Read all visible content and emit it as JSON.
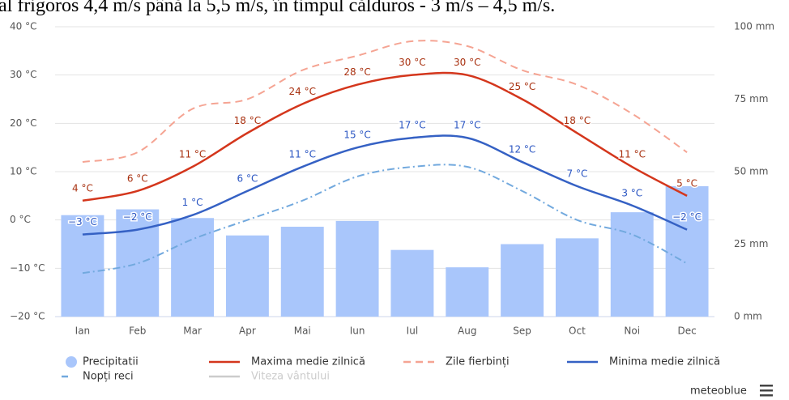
{
  "header_text": "al frigoros 4,4 m/s până la 5,5 m/s, în timpul călduros - 3 m/s – 4,5 m/s.",
  "chart_data": {
    "type": "combo",
    "categories": [
      "Ian",
      "Feb",
      "Mar",
      "Apr",
      "Mai",
      "Iun",
      "Iul",
      "Aug",
      "Sep",
      "Oct",
      "Noi",
      "Dec"
    ],
    "ylim": [
      -20,
      40
    ],
    "yticks": [
      {
        "value": 40,
        "label": "40 °C"
      },
      {
        "value": 30,
        "label": "30 °C"
      },
      {
        "value": 20,
        "label": "20 °C"
      },
      {
        "value": 10,
        "label": "10 °C"
      },
      {
        "value": 0,
        "label": "0 °C"
      },
      {
        "value": -10,
        "label": "−10 °C"
      },
      {
        "value": -20,
        "label": "−20 °C"
      }
    ],
    "y2lim": [
      0,
      100
    ],
    "y2ticks": [
      {
        "value": 100,
        "label": "100 mm"
      },
      {
        "value": 75,
        "label": "75 mm"
      },
      {
        "value": 50,
        "label": "50 mm"
      },
      {
        "value": 25,
        "label": "25 mm"
      },
      {
        "value": 0,
        "label": "0 mm"
      }
    ],
    "grid": true,
    "series": [
      {
        "name": "Precipitatii",
        "type": "bar",
        "axis": "y2",
        "color": "#a9c6fb",
        "values": [
          35,
          37,
          34,
          28,
          31,
          33,
          23,
          17,
          25,
          27,
          36,
          45
        ]
      },
      {
        "name": "Maxima medie zilnică",
        "type": "line",
        "color": "#d4361c",
        "label_color": "#a8300f",
        "values": [
          4,
          6,
          11,
          18,
          24,
          28,
          30,
          30,
          25,
          18,
          11,
          5
        ],
        "value_labels": [
          "4 °C",
          "6 °C",
          "11 °C",
          "18 °C",
          "24 °C",
          "28 °C",
          "30 °C",
          "30 °C",
          "25 °C",
          "18 °C",
          "11 °C",
          "5 °C"
        ]
      },
      {
        "name": "Zile fierbinți",
        "type": "line",
        "dash": "dashed",
        "color": "#f5a493",
        "values": [
          12,
          14,
          23,
          25,
          31,
          34,
          37,
          36,
          31,
          28,
          22,
          14
        ]
      },
      {
        "name": "Minima medie zilnică",
        "type": "line",
        "color": "#3561c4",
        "label_color": "#2a55c2",
        "values": [
          -3,
          -2,
          1,
          6,
          11,
          15,
          17,
          17,
          12,
          7,
          3,
          -2
        ],
        "value_labels": [
          "−3 °C",
          "−2 °C",
          "1 °C",
          "6 °C",
          "11 °C",
          "15 °C",
          "17 °C",
          "17 °C",
          "12 °C",
          "7 °C",
          "3 °C",
          "−2 °C"
        ]
      },
      {
        "name": "Nopți reci",
        "type": "line",
        "dash": "dashdot",
        "color": "#72a9de",
        "values": [
          -11,
          -9,
          -4,
          0,
          4,
          9,
          11,
          11,
          6,
          0,
          -3,
          -9
        ]
      }
    ],
    "hidden_legend": [
      "Viteza vântului"
    ],
    "credit": "meteoblue"
  }
}
